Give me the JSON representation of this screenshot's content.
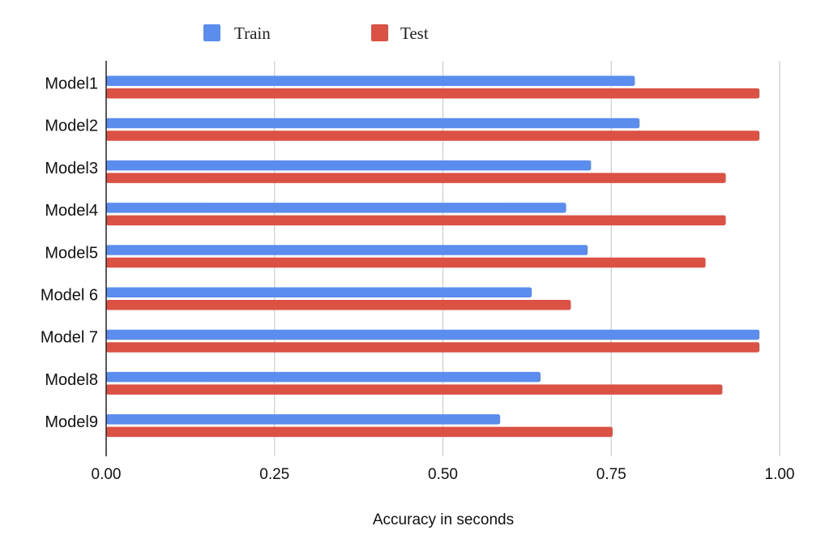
{
  "chart_data": {
    "type": "bar",
    "orientation": "horizontal",
    "categories": [
      "Model1",
      "Model2",
      "Model3",
      "Model4",
      "Model5",
      "Model 6",
      "Model 7",
      "Model8",
      "Model9"
    ],
    "series": [
      {
        "name": "Train",
        "color": "#5b8def",
        "values": [
          0.785,
          0.792,
          0.72,
          0.683,
          0.715,
          0.632,
          0.97,
          0.645,
          0.585
        ]
      },
      {
        "name": "Test",
        "color": "#db5245",
        "values": [
          0.97,
          0.97,
          0.92,
          0.92,
          0.89,
          0.69,
          0.97,
          0.915,
          0.752
        ]
      }
    ],
    "xlim": [
      0,
      1
    ],
    "xticks": [
      "0.00",
      "0.25",
      "0.50",
      "0.75",
      "1.00"
    ],
    "xlabel": "Accuracy in seconds",
    "grid": true,
    "legend_position": "top"
  }
}
